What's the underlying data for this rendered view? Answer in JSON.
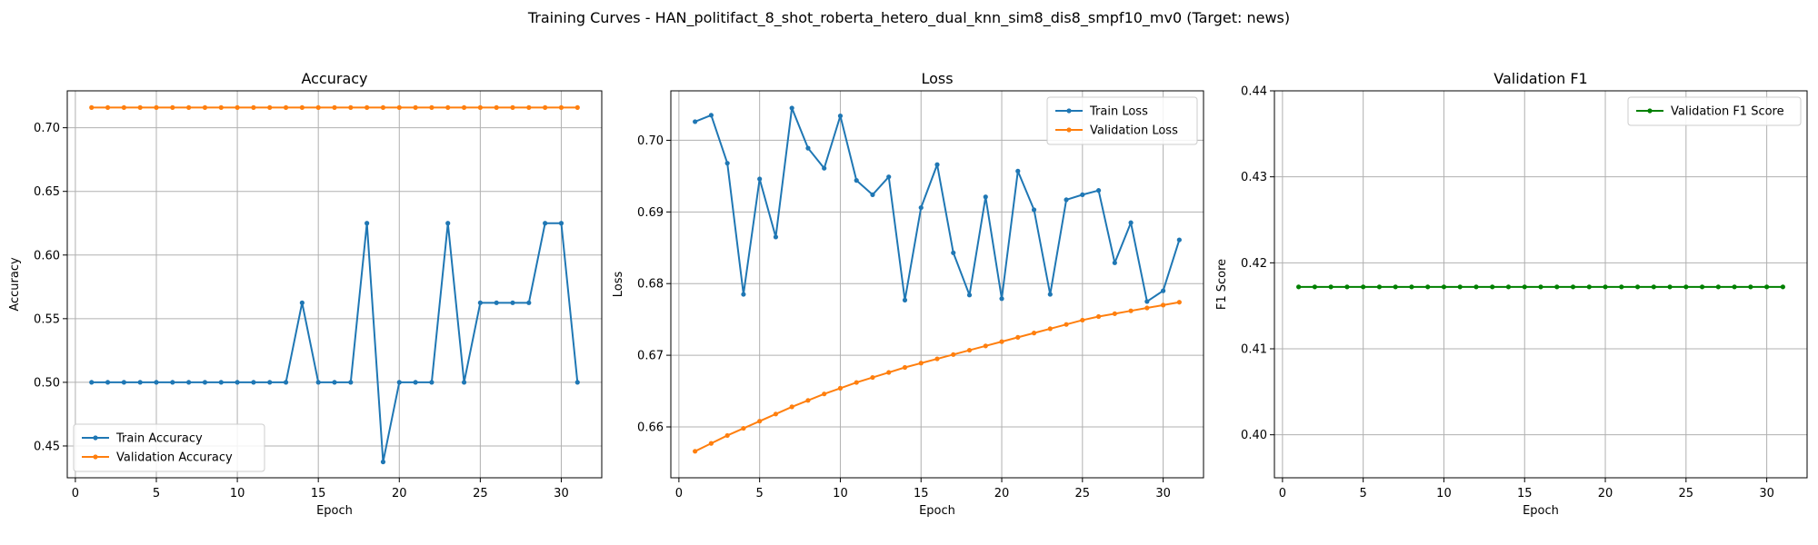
{
  "figure": {
    "suptitle": "Training Curves - HAN_politifact_8_shot_roberta_hetero_dual_knn_sim8_dis8_smpf10_mv0 (Target: news)"
  },
  "chart_data": [
    {
      "type": "line",
      "title": "Accuracy",
      "xlabel": "Epoch",
      "ylabel": "Accuracy",
      "xlim": [
        -0.5,
        32.5
      ],
      "ylim": [
        0.425,
        0.729
      ],
      "xticks": [
        0,
        5,
        10,
        15,
        20,
        25,
        30
      ],
      "yticks": [
        0.45,
        0.5,
        0.55,
        0.6,
        0.65,
        0.7
      ],
      "ytick_labels": [
        "0.45",
        "0.50",
        "0.55",
        "0.60",
        "0.65",
        "0.70"
      ],
      "grid": true,
      "legend_position": "lower-left",
      "x": [
        1,
        2,
        3,
        4,
        5,
        6,
        7,
        8,
        9,
        10,
        11,
        12,
        13,
        14,
        15,
        16,
        17,
        18,
        19,
        20,
        21,
        22,
        23,
        24,
        25,
        26,
        27,
        28,
        29,
        30,
        31
      ],
      "series": [
        {
          "name": "Train Accuracy",
          "color": "#1f77b4",
          "values": [
            0.5,
            0.5,
            0.5,
            0.5,
            0.5,
            0.5,
            0.5,
            0.5,
            0.5,
            0.5,
            0.5,
            0.5,
            0.5,
            0.5625,
            0.5,
            0.5,
            0.5,
            0.625,
            0.4375,
            0.5,
            0.5,
            0.5,
            0.625,
            0.5,
            0.5625,
            0.5625,
            0.5625,
            0.5625,
            0.625,
            0.625,
            0.5
          ]
        },
        {
          "name": "Validation Accuracy",
          "color": "#ff7f0e",
          "values": [
            0.7159,
            0.7159,
            0.7159,
            0.7159,
            0.7159,
            0.7159,
            0.7159,
            0.7159,
            0.7159,
            0.7159,
            0.7159,
            0.7159,
            0.7159,
            0.7159,
            0.7159,
            0.7159,
            0.7159,
            0.7159,
            0.7159,
            0.7159,
            0.7159,
            0.7159,
            0.7159,
            0.7159,
            0.7159,
            0.7159,
            0.7159,
            0.7159,
            0.7159,
            0.7159,
            0.7159
          ]
        }
      ]
    },
    {
      "type": "line",
      "title": "Loss",
      "xlabel": "Epoch",
      "ylabel": "Loss",
      "xlim": [
        -0.5,
        32.5
      ],
      "ylim": [
        0.6529,
        0.7069
      ],
      "xticks": [
        0,
        5,
        10,
        15,
        20,
        25,
        30
      ],
      "yticks": [
        0.66,
        0.67,
        0.68,
        0.69,
        0.7
      ],
      "ytick_labels": [
        "0.66",
        "0.67",
        "0.68",
        "0.69",
        "0.70"
      ],
      "grid": true,
      "legend_position": "top-right",
      "x": [
        1,
        2,
        3,
        4,
        5,
        6,
        7,
        8,
        9,
        10,
        11,
        12,
        13,
        14,
        15,
        16,
        17,
        18,
        19,
        20,
        21,
        22,
        23,
        24,
        25,
        26,
        27,
        28,
        29,
        30,
        31
      ],
      "series": [
        {
          "name": "Train Loss",
          "color": "#1f77b4",
          "values": [
            0.7026,
            0.7035,
            0.6968,
            0.6785,
            0.6946,
            0.6865,
            0.7045,
            0.6989,
            0.6961,
            0.7034,
            0.6944,
            0.6924,
            0.6949,
            0.6777,
            0.6906,
            0.6966,
            0.6843,
            0.6784,
            0.6921,
            0.6779,
            0.6957,
            0.6903,
            0.6785,
            0.6917,
            0.6924,
            0.693,
            0.6829,
            0.6885,
            0.6775,
            0.679,
            0.6861
          ]
        },
        {
          "name": "Validation Loss",
          "color": "#ff7f0e",
          "values": [
            0.6566,
            0.6577,
            0.6588,
            0.6598,
            0.6608,
            0.6618,
            0.6628,
            0.6637,
            0.6646,
            0.6654,
            0.6662,
            0.6669,
            0.6676,
            0.6683,
            0.6689,
            0.6695,
            0.6701,
            0.6707,
            0.6713,
            0.6719,
            0.6725,
            0.6731,
            0.6737,
            0.6743,
            0.6749,
            0.6754,
            0.6758,
            0.6762,
            0.6766,
            0.677,
            0.6774
          ]
        }
      ]
    },
    {
      "type": "line",
      "title": "Validation F1",
      "xlabel": "Epoch",
      "ylabel": "F1 Score",
      "xlim": [
        -0.5,
        32.5
      ],
      "ylim": [
        0.395,
        0.44
      ],
      "xticks": [
        0,
        5,
        10,
        15,
        20,
        25,
        30
      ],
      "yticks": [
        0.4,
        0.41,
        0.42,
        0.43,
        0.44
      ],
      "ytick_labels": [
        "0.40",
        "0.41",
        "0.42",
        "0.43",
        "0.44"
      ],
      "grid": true,
      "legend_position": "top-right",
      "x": [
        1,
        2,
        3,
        4,
        5,
        6,
        7,
        8,
        9,
        10,
        11,
        12,
        13,
        14,
        15,
        16,
        17,
        18,
        19,
        20,
        21,
        22,
        23,
        24,
        25,
        26,
        27,
        28,
        29,
        30,
        31
      ],
      "series": [
        {
          "name": "Validation F1 Score",
          "color": "#008000",
          "values": [
            0.4172,
            0.4172,
            0.4172,
            0.4172,
            0.4172,
            0.4172,
            0.4172,
            0.4172,
            0.4172,
            0.4172,
            0.4172,
            0.4172,
            0.4172,
            0.4172,
            0.4172,
            0.4172,
            0.4172,
            0.4172,
            0.4172,
            0.4172,
            0.4172,
            0.4172,
            0.4172,
            0.4172,
            0.4172,
            0.4172,
            0.4172,
            0.4172,
            0.4172,
            0.4172,
            0.4172
          ]
        }
      ]
    }
  ]
}
